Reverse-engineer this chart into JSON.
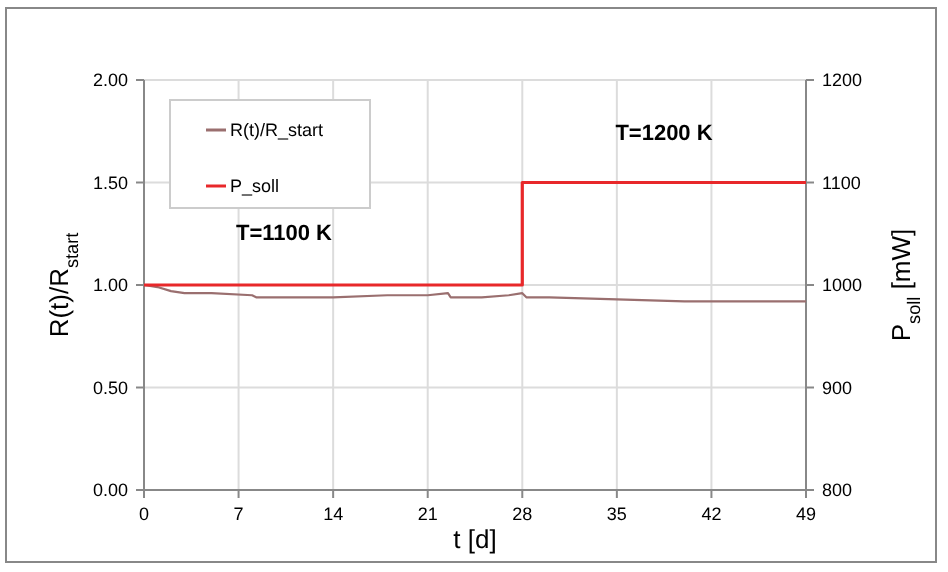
{
  "chart_data": {
    "type": "line",
    "xlabel": "t [d]",
    "ylabel": "R(t)/R$_{start}$",
    "y2label": "P$_{soll}$ [mW]",
    "xlim": [
      0,
      49
    ],
    "xticks": [
      0,
      7,
      14,
      21,
      28,
      35,
      42,
      49
    ],
    "ylim": [
      0,
      2
    ],
    "yticks": [
      {
        "value": 0,
        "label": "0.00"
      },
      {
        "value": 0.5,
        "label": "0.50"
      },
      {
        "value": 1,
        "label": "1.00"
      },
      {
        "value": 1.5,
        "label": "1.50"
      },
      {
        "value": 2,
        "label": "2.00"
      }
    ],
    "y2lim": [
      800,
      1200
    ],
    "y2ticks": [
      800,
      900,
      1000,
      1100,
      1200
    ],
    "grid": true,
    "legend": "top left",
    "marker": "none",
    "series": [
      {
        "name": "R(t)/R_start",
        "color": "#9a6f6f",
        "x": [
          0,
          1,
          2,
          3,
          5,
          8,
          8.3,
          10,
          14,
          18,
          21,
          22.5,
          22.7,
          25,
          27,
          28,
          28.3,
          30,
          35,
          40,
          42,
          45,
          49
        ],
        "values": [
          1.0,
          0.99,
          0.97,
          0.96,
          0.96,
          0.95,
          0.94,
          0.94,
          0.94,
          0.95,
          0.95,
          0.96,
          0.94,
          0.94,
          0.95,
          0.96,
          0.94,
          0.94,
          0.93,
          0.92,
          0.92,
          0.92,
          0.92
        ]
      },
      {
        "name": "P_soll",
        "color": "#e8282a",
        "type": "step",
        "axis": "y2",
        "x": [
          0,
          28,
          49
        ],
        "values": [
          1000,
          1100,
          1100
        ]
      }
    ],
    "annotations": [
      "T=1100 K",
      "T=1200 K"
    ]
  }
}
